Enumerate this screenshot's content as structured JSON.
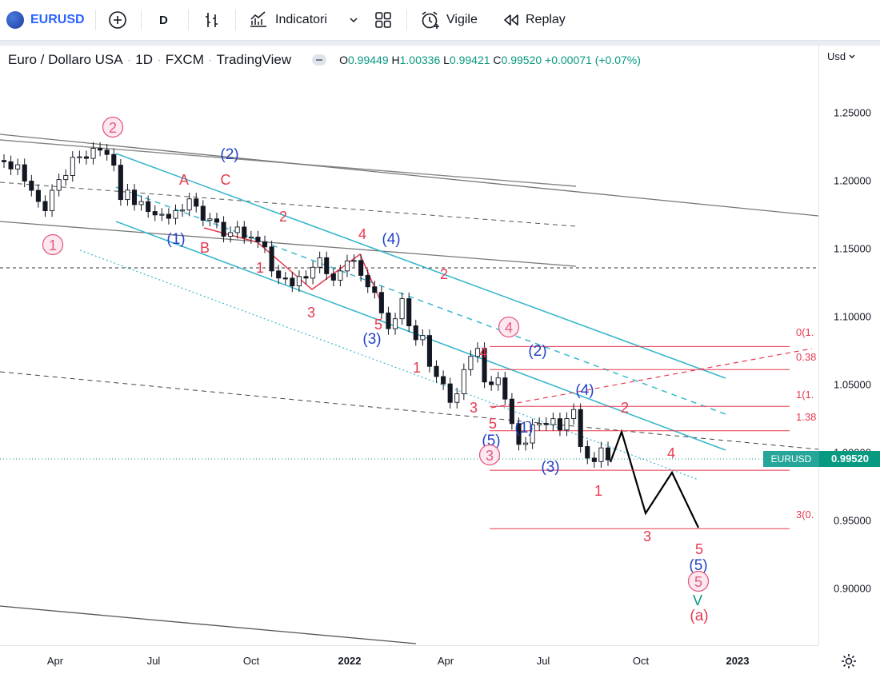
{
  "toolbar": {
    "symbol": "EURUSD",
    "interval": "D",
    "indicators_label": "Indicatori",
    "alert_label": "Vigile",
    "replay_label": "Replay"
  },
  "legend": {
    "title": "Euro / Dollaro USA",
    "interval": "1D",
    "exchange": "FXCM",
    "source": "TradingView",
    "o_label": "O",
    "o": "0.99449",
    "h_label": "H",
    "h": "1.00336",
    "l_label": "L",
    "l": "0.99421",
    "c_label": "C",
    "c": "0.99520",
    "change": "+0.00071 (+0.07%)"
  },
  "currency": "Usd",
  "last_price": {
    "symbol": "EURUSD",
    "value": "0.99520",
    "price": 0.9952
  },
  "colors": {
    "up": "#089981",
    "red": "#e8384f",
    "blue": "#2343c8",
    "pink": "#e35b84",
    "cyan": "#39b8cc",
    "gray": "#787b86"
  },
  "chart_data": {
    "type": "candlestick",
    "symbol": "EURUSD",
    "x_ticks": [
      "Apr",
      "Jul",
      "Oct",
      "2022",
      "Apr",
      "Jul",
      "Oct",
      "2023"
    ],
    "y_ticks": [
      "1.25000",
      "1.20000",
      "1.15000",
      "1.10000",
      "1.05000",
      "1.00000",
      "0.95000",
      "0.90000"
    ],
    "ylim": [
      0.861,
      1.292
    ],
    "series": [
      {
        "values": [
          [
            1.2155,
            1.2145
          ],
          [
            1.2145,
            1.2092
          ],
          [
            1.2092,
            1.2123
          ],
          [
            1.2123,
            1.2003
          ],
          [
            1.2003,
            1.1935
          ],
          [
            1.1935,
            1.1853
          ],
          [
            1.1853,
            1.1785
          ],
          [
            1.1785,
            1.1935
          ],
          [
            1.1935,
            1.2014
          ],
          [
            1.2014,
            1.2044
          ],
          [
            1.2044,
            1.2178
          ],
          [
            1.2178,
            1.2182
          ],
          [
            1.2182,
            1.217
          ],
          [
            1.217,
            1.2244
          ],
          [
            1.2244,
            1.2231
          ],
          [
            1.2231,
            1.2199
          ],
          [
            1.2199,
            1.212
          ],
          [
            1.212,
            1.1867
          ],
          [
            1.1867,
            1.1937
          ],
          [
            1.1937,
            1.183
          ],
          [
            1.183,
            1.1852
          ],
          [
            1.1852,
            1.1779
          ],
          [
            1.1779,
            1.1754
          ],
          [
            1.1754,
            1.1759
          ],
          [
            1.1759,
            1.1729
          ],
          [
            1.1729,
            1.1786
          ],
          [
            1.1786,
            1.179
          ],
          [
            1.179,
            1.1872
          ],
          [
            1.1872,
            1.1818
          ],
          [
            1.1818,
            1.1715
          ],
          [
            1.1715,
            1.1725
          ],
          [
            1.1725,
            1.17
          ],
          [
            1.17,
            1.1597
          ],
          [
            1.1597,
            1.1624
          ],
          [
            1.1624,
            1.1665
          ],
          [
            1.1665,
            1.1587
          ],
          [
            1.1587,
            1.1591
          ],
          [
            1.1591,
            1.1557
          ],
          [
            1.1557,
            1.1519
          ],
          [
            1.1519,
            1.1342
          ],
          [
            1.1342,
            1.129
          ],
          [
            1.129,
            1.1289
          ],
          [
            1.1289,
            1.1232
          ],
          [
            1.1232,
            1.1301
          ],
          [
            1.1301,
            1.1289
          ],
          [
            1.1289,
            1.1369
          ],
          [
            1.1369,
            1.1439
          ],
          [
            1.1439,
            1.1321
          ],
          [
            1.1321,
            1.1274
          ],
          [
            1.1274,
            1.1342
          ],
          [
            1.1342,
            1.1416
          ],
          [
            1.1416,
            1.1419
          ],
          [
            1.1419,
            1.1309
          ],
          [
            1.1309,
            1.1225
          ],
          [
            1.1225,
            1.1184
          ],
          [
            1.1184,
            1.1033
          ],
          [
            1.1033,
            1.0917
          ],
          [
            1.0917,
            1.099
          ],
          [
            1.099,
            1.1138
          ],
          [
            1.1138,
            1.0938
          ],
          [
            1.0938,
            1.0836
          ],
          [
            1.0836,
            1.0867
          ],
          [
            1.0867,
            1.064
          ],
          [
            1.064,
            1.0565
          ],
          [
            1.0565,
            1.0511
          ],
          [
            1.0511,
            1.0375
          ],
          [
            1.0375,
            1.0438
          ],
          [
            1.0438,
            1.0616
          ],
          [
            1.0616,
            1.0713
          ],
          [
            1.0713,
            1.0772
          ],
          [
            1.0772,
            1.0525
          ],
          [
            1.0525,
            1.0505
          ],
          [
            1.0505,
            1.0555
          ],
          [
            1.0555,
            1.0399
          ],
          [
            1.0399,
            1.0219
          ],
          [
            1.0219,
            1.0066
          ],
          [
            1.0066,
            1.0076
          ],
          [
            1.0076,
            1.021
          ],
          [
            1.021,
            1.022
          ],
          [
            1.022,
            1.0211
          ],
          [
            1.0211,
            1.0255
          ],
          [
            1.0255,
            1.0172
          ],
          [
            1.0172,
            1.0256
          ],
          [
            1.0256,
            1.0322
          ],
          [
            1.0322,
            1.005
          ],
          [
            1.005,
            0.9965
          ],
          [
            0.9965,
            0.9939
          ],
          [
            0.9939,
            1.004
          ],
          [
            1.004,
            0.9952
          ]
        ]
      }
    ],
    "horizontal_levels": [
      1.078,
      1.061,
      1.034,
      1.016,
      0.987,
      0.944,
      1.138
    ],
    "fib_labels": [
      "0(1.",
      "0.38",
      "1(1.",
      "1.38",
      "3(0."
    ],
    "wave_labels": [
      {
        "text": "2",
        "color": "pink",
        "circled": true
      },
      {
        "text": "(2)",
        "color": "blue"
      },
      {
        "text": "1",
        "color": "pink",
        "circled": true
      },
      {
        "text": "A",
        "color": "red"
      },
      {
        "text": "C",
        "color": "red"
      },
      {
        "text": "(1)",
        "color": "blue"
      },
      {
        "text": "B",
        "color": "red"
      },
      {
        "text": "2",
        "color": "red"
      },
      {
        "text": "1",
        "color": "red"
      },
      {
        "text": "3",
        "color": "red"
      },
      {
        "text": "4",
        "color": "red"
      },
      {
        "text": "(4)",
        "color": "blue"
      },
      {
        "text": "5",
        "color": "red"
      },
      {
        "text": "(3)",
        "color": "blue"
      },
      {
        "text": "2",
        "color": "red"
      },
      {
        "text": "1",
        "color": "red"
      },
      {
        "text": "4",
        "color": "pink",
        "circled": true
      },
      {
        "text": "4",
        "color": "red"
      },
      {
        "text": "(2)",
        "color": "blue"
      },
      {
        "text": "3",
        "color": "red"
      },
      {
        "text": "5",
        "color": "red"
      },
      {
        "text": "(5)",
        "color": "blue"
      },
      {
        "text": "3",
        "color": "pink",
        "circled": true
      },
      {
        "text": "(1)",
        "color": "blue"
      },
      {
        "text": "(4)",
        "color": "blue"
      },
      {
        "text": "(3)",
        "color": "blue"
      },
      {
        "text": "1",
        "color": "red"
      },
      {
        "text": "2",
        "color": "red"
      },
      {
        "text": "4",
        "color": "red"
      },
      {
        "text": "3",
        "color": "red"
      },
      {
        "text": "5",
        "color": "red"
      },
      {
        "text": "(5)",
        "color": "blue"
      },
      {
        "text": "5",
        "color": "pink",
        "circled": true
      },
      {
        "text": "V",
        "color": "green"
      },
      {
        "text": "(a)",
        "color": "red"
      }
    ]
  }
}
